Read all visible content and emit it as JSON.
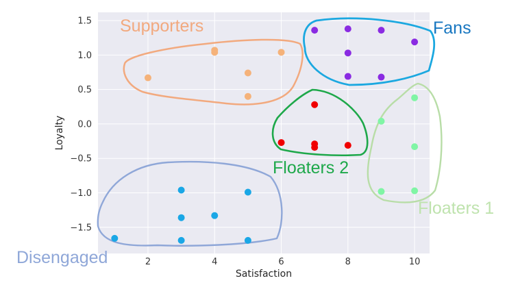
{
  "chart_data": {
    "type": "scatter",
    "xlabel": "Satisfaction",
    "ylabel": "Loyalty",
    "xlim": [
      0.5,
      10.45
    ],
    "ylim": [
      -1.88,
      1.62
    ],
    "x_ticks": [
      2,
      4,
      6,
      8,
      10
    ],
    "y_ticks": [
      -1.5,
      -1.0,
      -0.5,
      0.0,
      0.5,
      1.0,
      1.5
    ],
    "x_tick_labels": [
      "2",
      "4",
      "6",
      "8",
      "10"
    ],
    "y_tick_labels": [
      "−1.5",
      "−1.0",
      "−0.5",
      "0.0",
      "0.5",
      "1.0",
      "1.5"
    ],
    "grid": true,
    "background": "#EAEAF2",
    "series": [
      {
        "name": "Supporters",
        "color": "#F5B27A",
        "outline_color": "#F2A97E",
        "points": [
          [
            2,
            0.67
          ],
          [
            4,
            1.07
          ],
          [
            4,
            1.04
          ],
          [
            5,
            0.74
          ],
          [
            5,
            0.4
          ],
          [
            6,
            1.04
          ]
        ]
      },
      {
        "name": "Fans",
        "color": "#8A2BE2",
        "outline_color": "#1BA8E0",
        "points": [
          [
            7,
            1.36
          ],
          [
            8,
            1.38
          ],
          [
            9,
            1.36
          ],
          [
            10,
            1.19
          ],
          [
            8,
            1.03
          ],
          [
            8,
            0.69
          ],
          [
            9,
            0.68
          ]
        ]
      },
      {
        "name": "Floaters 2",
        "color": "#F00000",
        "outline_color": "#1EA84A",
        "points": [
          [
            7,
            0.28
          ],
          [
            6,
            -0.27
          ],
          [
            7,
            -0.29
          ],
          [
            7,
            -0.34
          ],
          [
            8,
            -0.31
          ]
        ]
      },
      {
        "name": "Floaters 1",
        "color": "#80F5A5",
        "outline_color": "#B8DDA7",
        "points": [
          [
            10,
            0.38
          ],
          [
            9,
            0.04
          ],
          [
            10,
            -0.33
          ],
          [
            9,
            -0.98
          ],
          [
            10,
            -0.97
          ]
        ]
      },
      {
        "name": "Disengaged",
        "color": "#1AA7E6",
        "outline_color": "#8FA7D8",
        "points": [
          [
            3,
            -0.96
          ],
          [
            5,
            -0.99
          ],
          [
            3,
            -1.36
          ],
          [
            4,
            -1.33
          ],
          [
            1,
            -1.66
          ],
          [
            3,
            -1.69
          ],
          [
            5,
            -1.69
          ]
        ]
      }
    ]
  }
}
